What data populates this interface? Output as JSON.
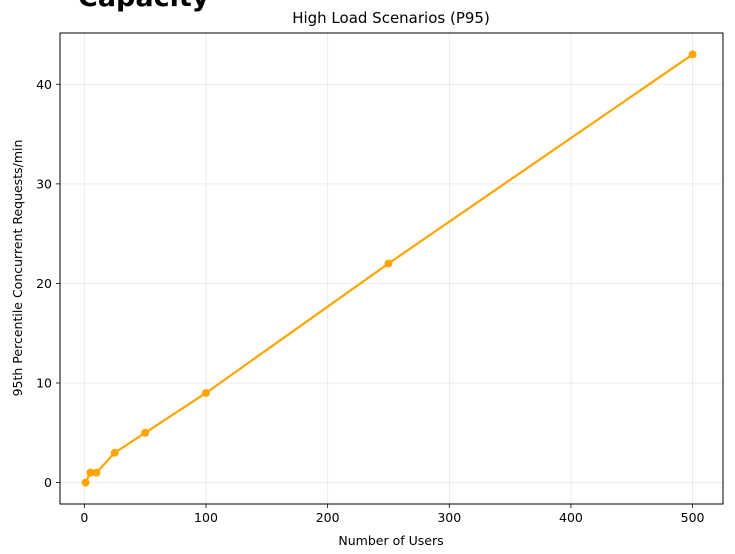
{
  "figure": {
    "clipped_heading": "Capacity"
  },
  "chart_data": {
    "type": "line",
    "title": "High Load Scenarios (P95)",
    "xlabel": "Number of Users",
    "ylabel": "95th Percentile Concurrent Requests/min",
    "x": [
      1,
      5,
      10,
      25,
      50,
      100,
      250,
      500
    ],
    "series": [
      {
        "values": [
          0,
          1,
          1,
          3,
          5,
          9,
          22,
          43
        ],
        "color": "#FFA500"
      }
    ],
    "xlim": [
      -20,
      525
    ],
    "ylim": [
      -2.15,
      45.15
    ],
    "xticks": [
      0,
      100,
      200,
      300,
      400,
      500
    ],
    "yticks": [
      0,
      10,
      20,
      30,
      40
    ],
    "grid": true,
    "legend": "none"
  }
}
